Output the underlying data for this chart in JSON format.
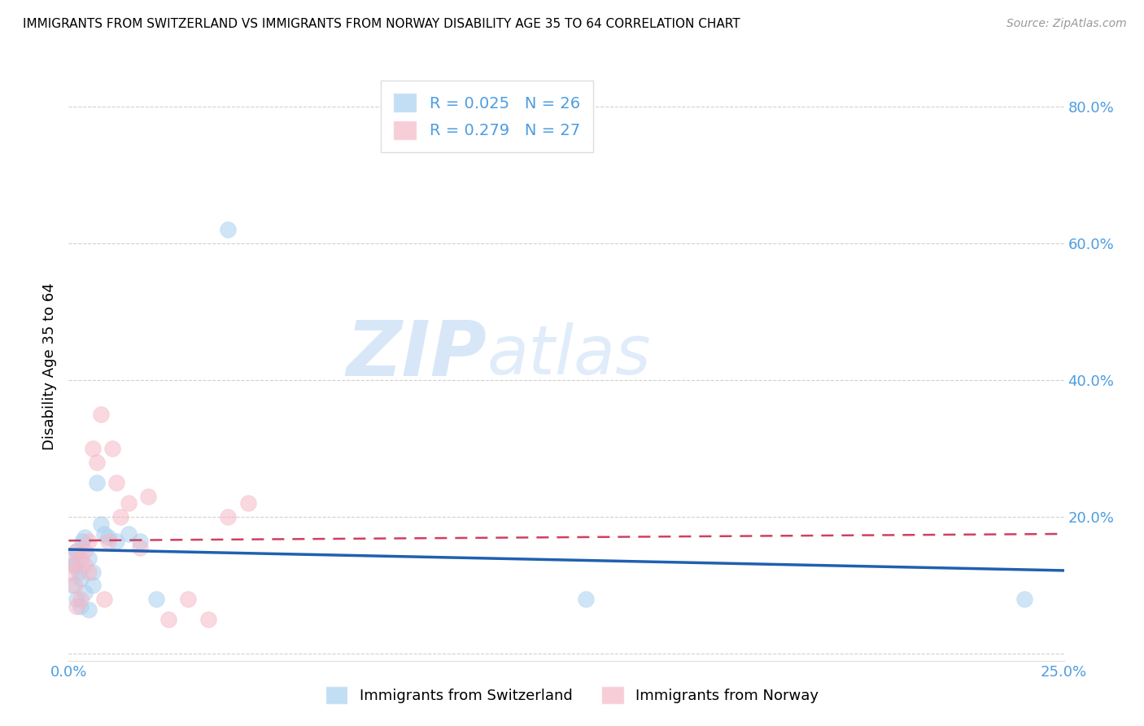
{
  "title": "IMMIGRANTS FROM SWITZERLAND VS IMMIGRANTS FROM NORWAY DISABILITY AGE 35 TO 64 CORRELATION CHART",
  "source": "Source: ZipAtlas.com",
  "ylabel": "Disability Age 35 to 64",
  "xlim": [
    0.0,
    0.25
  ],
  "ylim": [
    -0.01,
    0.85
  ],
  "xtick_positions": [
    0.0,
    0.05,
    0.1,
    0.15,
    0.2,
    0.25
  ],
  "xticklabels": [
    "0.0%",
    "",
    "",
    "",
    "",
    "25.0%"
  ],
  "ytick_positions": [
    0.0,
    0.2,
    0.4,
    0.6,
    0.8
  ],
  "yticklabels": [
    "",
    "20.0%",
    "40.0%",
    "60.0%",
    "80.0%"
  ],
  "blue_scatter_color": "#a8d0f0",
  "pink_scatter_color": "#f5b8c8",
  "blue_line_color": "#2060b0",
  "pink_line_color": "#d04060",
  "axis_tick_color": "#4d9de0",
  "grid_color": "#cccccc",
  "watermark_zip_color": "#c8def5",
  "watermark_atlas_color": "#c8def5",
  "legend_text_color": "#4d9de0",
  "swiss_x": [
    0.0005,
    0.001,
    0.0015,
    0.002,
    0.002,
    0.0025,
    0.003,
    0.003,
    0.0035,
    0.004,
    0.004,
    0.005,
    0.005,
    0.006,
    0.006,
    0.007,
    0.008,
    0.009,
    0.01,
    0.012,
    0.015,
    0.018,
    0.022,
    0.04,
    0.13,
    0.24
  ],
  "swiss_y": [
    0.14,
    0.1,
    0.13,
    0.08,
    0.15,
    0.12,
    0.07,
    0.11,
    0.165,
    0.09,
    0.17,
    0.14,
    0.065,
    0.12,
    0.1,
    0.25,
    0.19,
    0.175,
    0.17,
    0.165,
    0.175,
    0.165,
    0.08,
    0.62,
    0.08,
    0.08
  ],
  "norway_x": [
    0.0005,
    0.001,
    0.0015,
    0.002,
    0.002,
    0.003,
    0.003,
    0.004,
    0.004,
    0.005,
    0.005,
    0.006,
    0.007,
    0.008,
    0.009,
    0.01,
    0.011,
    0.012,
    0.013,
    0.015,
    0.018,
    0.02,
    0.025,
    0.03,
    0.035,
    0.04,
    0.045
  ],
  "norway_y": [
    0.12,
    0.13,
    0.1,
    0.15,
    0.07,
    0.14,
    0.08,
    0.13,
    0.15,
    0.12,
    0.165,
    0.3,
    0.28,
    0.35,
    0.08,
    0.165,
    0.3,
    0.25,
    0.2,
    0.22,
    0.155,
    0.23,
    0.05,
    0.08,
    0.05,
    0.2,
    0.22
  ]
}
